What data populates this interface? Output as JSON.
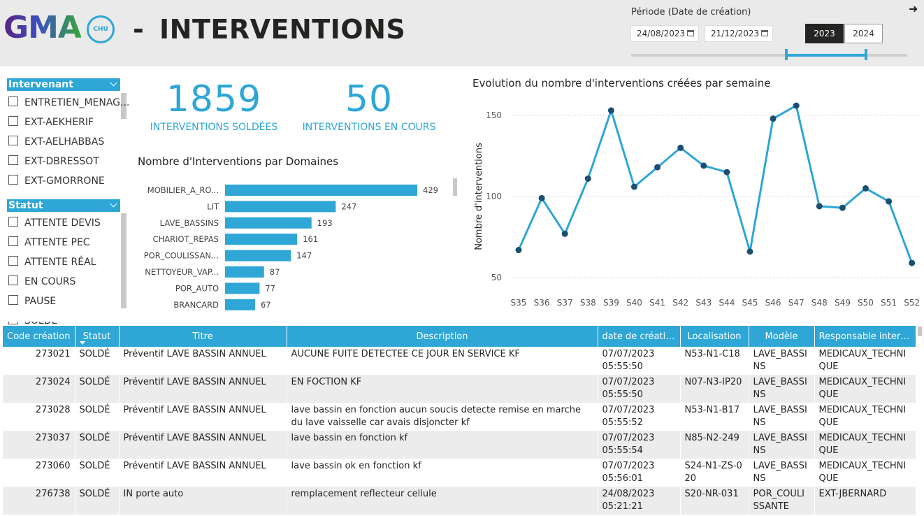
{
  "header": {
    "logo": "GMA",
    "logo_badge": "CHU",
    "dash": "-",
    "title": "INTERVENTIONS",
    "period_label": "Période (Date de création)",
    "date_start": "24/08/2023",
    "date_end": "21/12/2023",
    "years": [
      "2023",
      "2024"
    ]
  },
  "filters": [
    {
      "title": "Intervenant",
      "items": [
        "ENTRETIEN_MENAG...",
        "EXT-AEKHERIF",
        "EXT-AELHABBAS",
        "EXT-DBRESSOT",
        "EXT-GMORRONE"
      ]
    },
    {
      "title": "Statut",
      "items": [
        "ATTENTE DEVIS",
        "ATTENTE PEC",
        "ATTENTE RÉAL",
        "EN COURS",
        "PAUSE",
        "SOLDÉ"
      ]
    }
  ],
  "kpis": [
    {
      "value": 1859,
      "label": "INTERVENTIONS SOLDÉES"
    },
    {
      "value": 50,
      "label": "INTERVENTIONS EN COURS"
    }
  ],
  "chart_data": [
    {
      "type": "bar",
      "title": "Nombre d'Interventions par Domaines",
      "categories": [
        "MOBILIER_A_RO...",
        "LIT",
        "LAVE_BASSINS",
        "CHARIOT_REPAS",
        "POR_COULISSAN...",
        "NETTOYEUR_VAP...",
        "POR_AUTO",
        "BRANCARD"
      ],
      "values": [
        429,
        247,
        193,
        161,
        147,
        87,
        77,
        67
      ],
      "color": "#2ea6d6"
    },
    {
      "type": "line",
      "title": "Evolution du nombre d'interventions créées par semaine",
      "y_label": "Nombre d'interventions",
      "categories": [
        "S35",
        "S36",
        "S37",
        "S38",
        "S39",
        "S40",
        "S41",
        "S42",
        "S43",
        "S44",
        "S45",
        "S46",
        "S47",
        "S48",
        "S49",
        "S50",
        "S51",
        "S52"
      ],
      "values": [
        67,
        99,
        77,
        111,
        153,
        106,
        118,
        130,
        119,
        115,
        66,
        148,
        156,
        94,
        93,
        105,
        97,
        59
      ],
      "color": "#2ea6d6",
      "marker_color": "#1b4f72",
      "ylim": [
        40,
        160
      ],
      "yticks": [
        50,
        100,
        150
      ],
      "grid": true
    }
  ],
  "table": {
    "columns": [
      "Code création",
      "Statut",
      "Titre",
      "Description",
      "date de création",
      "Localisation",
      "Modèle",
      "Responsable interve..."
    ],
    "rows": [
      [
        "273021",
        "SOLDÉ",
        "Préventif LAVE BASSIN ANNUEL",
        "AUCUNE FUITE DETECTEE CE JOUR  EN SERVICE  KF",
        "07/07/2023 05:55:50",
        "N53-N1-C18",
        "LAVE_BASSINS",
        "MEDICAUX_TECHNIQUE"
      ],
      [
        "273024",
        "SOLDÉ",
        "Préventif LAVE BASSIN ANNUEL",
        "EN FOCTION  KF",
        "07/07/2023 05:55:50",
        "N07-N3-IP20",
        "LAVE_BASSINS",
        "MEDICAUX_TECHNIQUE"
      ],
      [
        "273028",
        "SOLDÉ",
        "Préventif LAVE BASSIN ANNUEL",
        "lave bassin en fonction aucun soucis detecte  remise en marche du lave vaisselle car avais disjoncter  kf",
        "07/07/2023 05:55:52",
        "N53-N1-B17",
        "LAVE_BASSINS",
        "MEDICAUX_TECHNIQUE"
      ],
      [
        "273037",
        "SOLDÉ",
        "Préventif LAVE BASSIN ANNUEL",
        "lave bassin en fonction  kf",
        "07/07/2023 05:55:54",
        "N85-N2-249",
        "LAVE_BASSINS",
        "MEDICAUX_TECHNIQUE"
      ],
      [
        "273060",
        "SOLDÉ",
        "Préventif LAVE BASSIN ANNUEL",
        "lave bassin ok en fonction kf",
        "07/07/2023 05:56:01",
        "S24-N1-ZS-020",
        "LAVE_BASSINS",
        "MEDICAUX_TECHNIQUE"
      ],
      [
        "276738",
        "SOLDÉ",
        "IN porte auto",
        "remplacement reflecteur cellule",
        "24/08/2023 05:21:21",
        "S20-NR-031",
        "POR_COULISSANTE",
        "EXT-JBERNARD"
      ]
    ]
  }
}
